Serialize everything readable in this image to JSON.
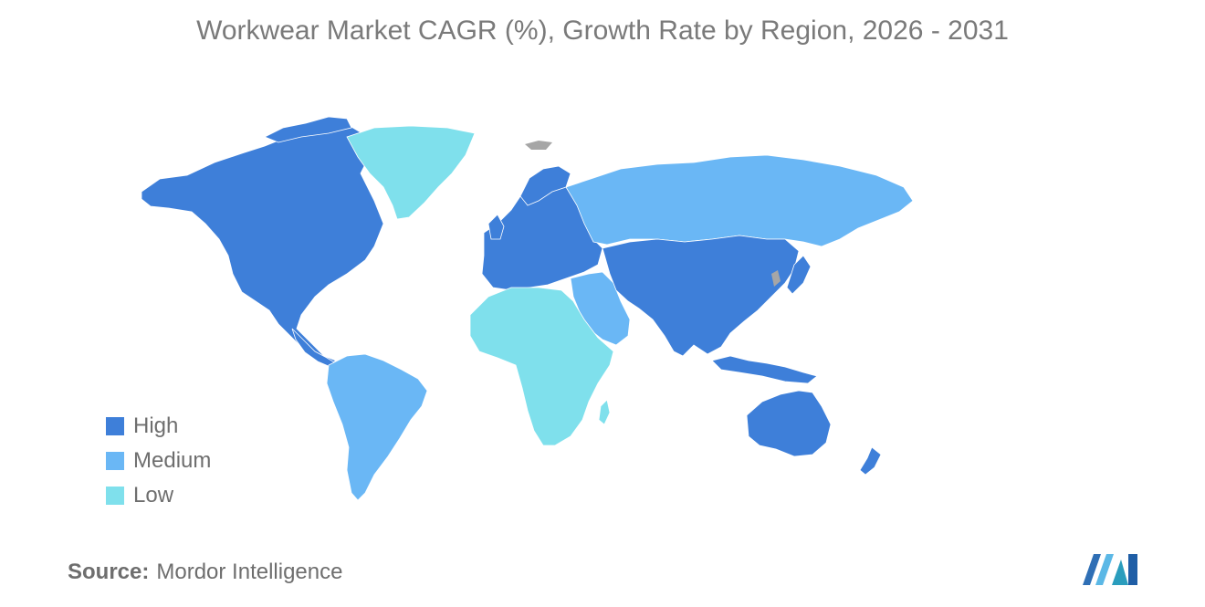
{
  "title": "Workwear Market CAGR (%), Growth Rate by Region, 2026 - 2031",
  "legend": [
    {
      "label": "High",
      "color": "#3e7fd9"
    },
    {
      "label": "Medium",
      "color": "#6ab7f5"
    },
    {
      "label": "Low",
      "color": "#7fe0ec"
    }
  ],
  "no_data_color": "#a6a6a6",
  "regions": [
    {
      "name": "North America",
      "level": "High"
    },
    {
      "name": "Europe",
      "level": "High"
    },
    {
      "name": "Asia-Pacific",
      "level": "High"
    },
    {
      "name": "South America",
      "level": "Medium"
    },
    {
      "name": "Middle East",
      "level": "Medium"
    },
    {
      "name": "Russia",
      "level": "Medium"
    },
    {
      "name": "Africa",
      "level": "Low"
    },
    {
      "name": "Greenland",
      "level": "Low"
    }
  ],
  "source": {
    "key": "Source:",
    "value": "Mordor Intelligence"
  },
  "logo_icon": "mordor-intelligence-logo"
}
